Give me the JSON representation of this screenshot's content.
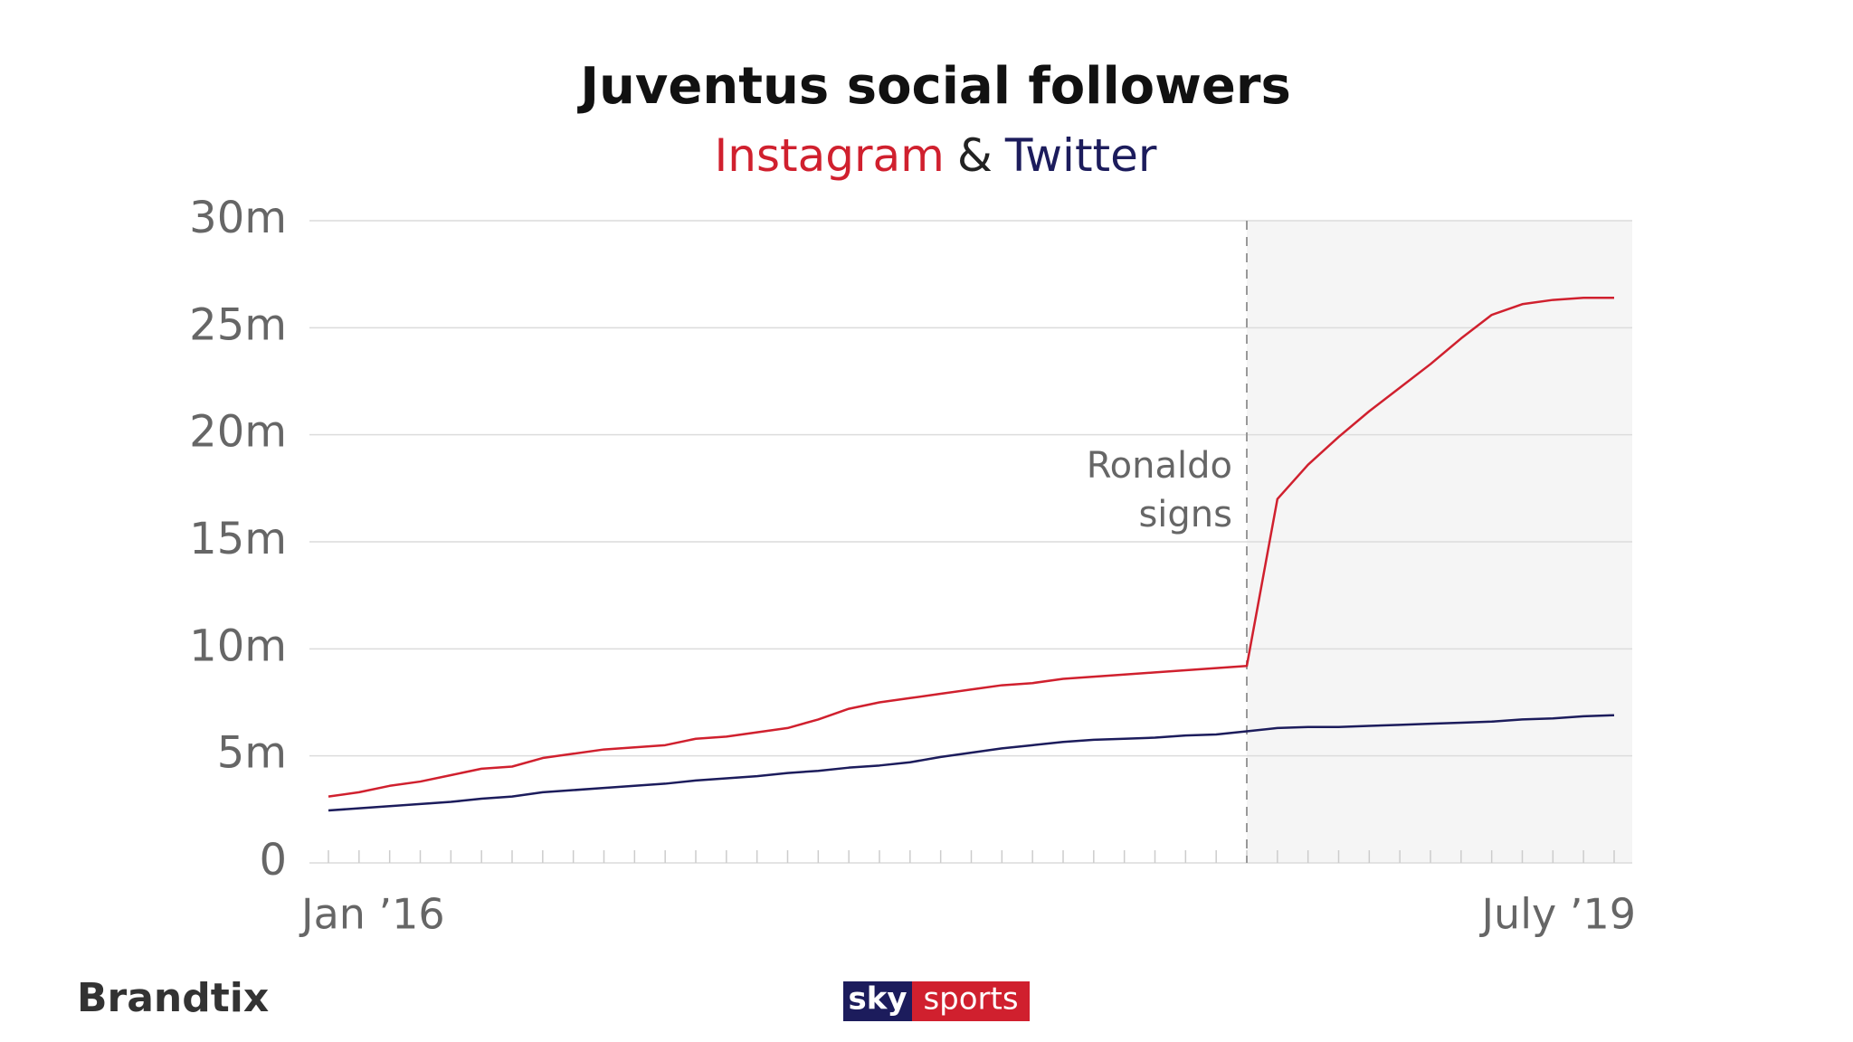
{
  "chart_data": {
    "type": "line",
    "title": "Juventus social followers",
    "legend_separator": "&",
    "annotation": [
      "Ronaldo",
      "signs"
    ],
    "categories": [
      "Jan ’16",
      null,
      null,
      null,
      null,
      null,
      null,
      null,
      null,
      null,
      null,
      null,
      null,
      null,
      null,
      null,
      null,
      null,
      null,
      null,
      null,
      null,
      null,
      null,
      null,
      null,
      null,
      null,
      null,
      null,
      null,
      null,
      null,
      null,
      null,
      null,
      null,
      null,
      null,
      null,
      null,
      null,
      "July ’19"
    ],
    "series": [
      {
        "name": "Instagram",
        "color": "#d0202e",
        "values": [
          3.1,
          3.3,
          3.6,
          3.8,
          4.1,
          4.4,
          4.5,
          4.9,
          5.1,
          5.3,
          5.4,
          5.5,
          5.8,
          5.9,
          6.1,
          6.3,
          6.7,
          7.2,
          7.5,
          7.7,
          7.9,
          8.1,
          8.3,
          8.4,
          8.6,
          8.7,
          8.8,
          8.9,
          9.0,
          9.1,
          9.2,
          17.0,
          18.6,
          19.9,
          21.1,
          22.2,
          23.3,
          24.5,
          25.6,
          26.1,
          26.3,
          26.4,
          26.4
        ]
      },
      {
        "name": "Twitter",
        "color": "#1c1c5c",
        "values": [
          2.45,
          2.55,
          2.65,
          2.75,
          2.85,
          3.0,
          3.1,
          3.3,
          3.4,
          3.5,
          3.6,
          3.7,
          3.85,
          3.95,
          4.05,
          4.2,
          4.3,
          4.45,
          4.55,
          4.7,
          4.95,
          5.15,
          5.35,
          5.5,
          5.65,
          5.75,
          5.8,
          5.85,
          5.95,
          6.0,
          6.15,
          6.3,
          6.35,
          6.35,
          6.4,
          6.45,
          6.5,
          6.55,
          6.6,
          6.7,
          6.75,
          6.85,
          6.9
        ]
      }
    ],
    "ylim": [
      0,
      30
    ],
    "yticks": [
      0,
      {
        "value": 5,
        "label": "5m"
      },
      {
        "value": 10,
        "label": "10m"
      },
      {
        "value": 15,
        "label": "15m"
      },
      {
        "value": 20,
        "label": "20m"
      },
      {
        "value": 25,
        "label": "25m"
      },
      {
        "value": 30,
        "label": "30m"
      }
    ],
    "grid": true
  },
  "footer": {
    "brand": "Brandtix",
    "logo": [
      "sky",
      "sports"
    ]
  }
}
